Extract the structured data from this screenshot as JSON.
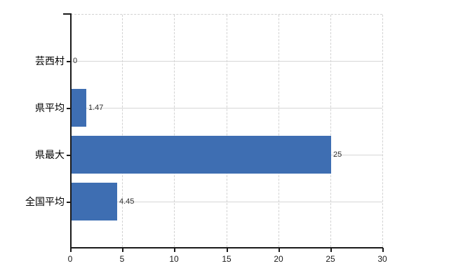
{
  "chart_data": {
    "type": "bar",
    "orientation": "horizontal",
    "title": "",
    "categories": [
      "芸西村",
      "県平均",
      "県最大",
      "全国平均"
    ],
    "values": [
      0,
      1.47,
      25,
      4.45
    ],
    "value_labels": [
      "0",
      "1.47",
      "25",
      "4.45"
    ],
    "xlim": [
      0,
      30
    ],
    "x_ticks": [
      0,
      5,
      10,
      15,
      20,
      25,
      30
    ],
    "x_tick_labels": [
      "0",
      "5",
      "10",
      "15",
      "20",
      "25",
      "30"
    ],
    "grid": true,
    "legend": false
  },
  "colors": {
    "bar": "#3e6eb2",
    "grid": "#d6d6d6",
    "grid_dashed": "#d2d2d2",
    "axis": "#1a1a1a",
    "category_text": "#000000",
    "value_text": "#303030",
    "background": "#ffffff"
  }
}
